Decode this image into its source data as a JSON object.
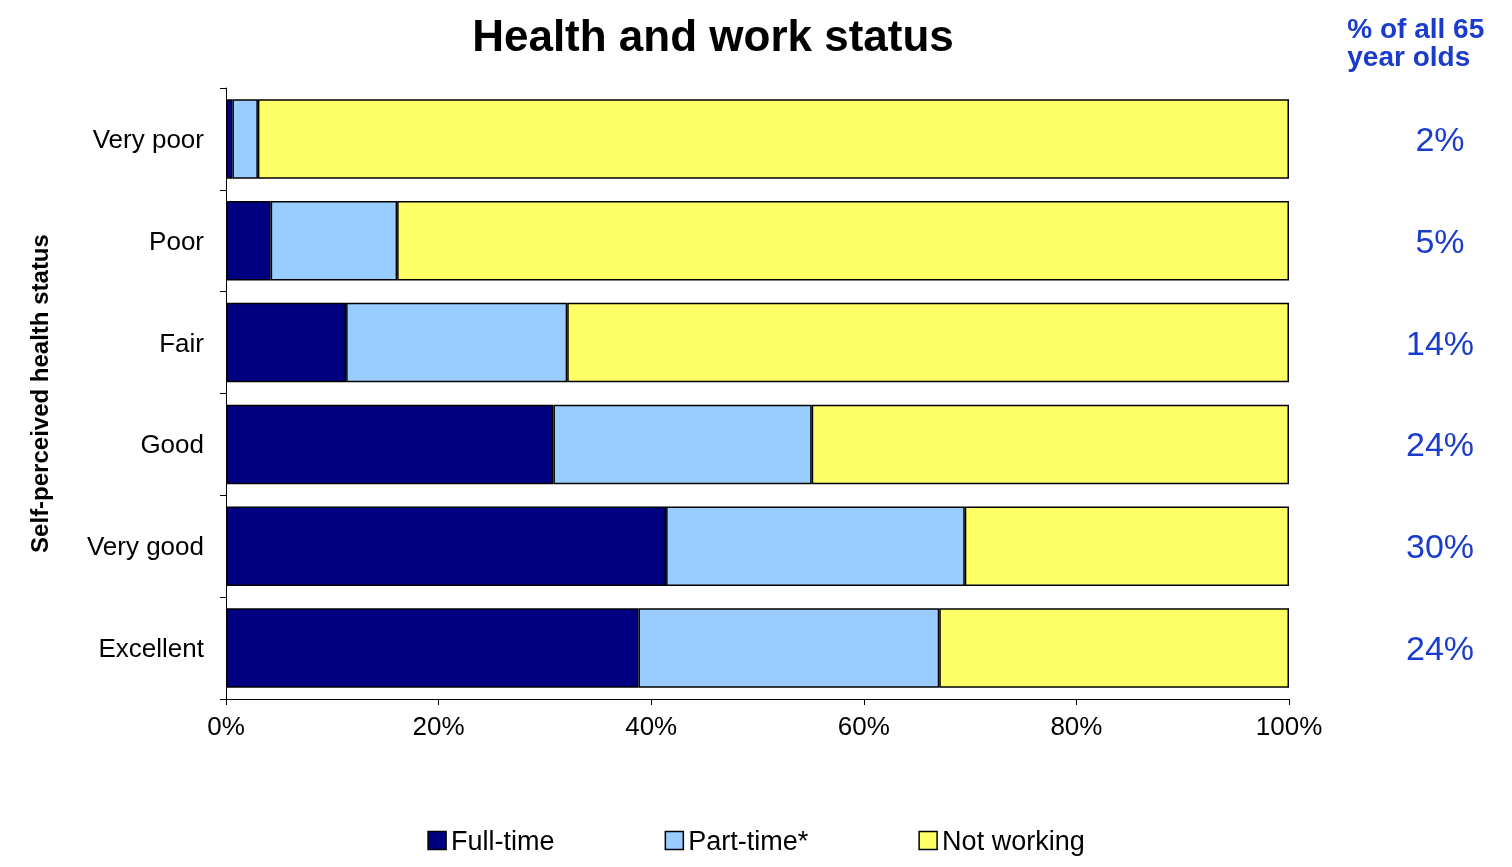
{
  "chart_data": {
    "type": "bar",
    "orientation": "horizontal",
    "stacked": true,
    "title": "Health and work status",
    "ylabel": "Self-perceived health status",
    "categories": [
      "Very poor",
      "Poor",
      "Fair",
      "Good",
      "Very good",
      "Excellent"
    ],
    "series": [
      {
        "name": "Full-time",
        "color": "#000080",
        "values": [
          0.6,
          4.2,
          11.3,
          30.8,
          41.4,
          38.8
        ]
      },
      {
        "name": "Part-time*",
        "color": "#99ccff",
        "values": [
          2.4,
          11.9,
          20.8,
          24.3,
          28.1,
          28.3
        ]
      },
      {
        "name": "Not working",
        "color": "#ffff66",
        "values": [
          97.0,
          83.9,
          67.9,
          44.9,
          30.5,
          32.9
        ]
      }
    ],
    "xlim": [
      0,
      100
    ],
    "xticks": [
      {
        "value": 0,
        "label": "0%"
      },
      {
        "value": 20,
        "label": "20%"
      },
      {
        "value": 40,
        "label": "40%"
      },
      {
        "value": 60,
        "label": "60%"
      },
      {
        "value": 80,
        "label": "80%"
      },
      {
        "value": 100,
        "label": "100%"
      }
    ],
    "grid": false,
    "legend": "bottom",
    "annotations": [
      "% of all 65 year olds",
      "2%",
      "5%",
      "14%",
      "24%",
      "30%",
      "24%"
    ]
  }
}
